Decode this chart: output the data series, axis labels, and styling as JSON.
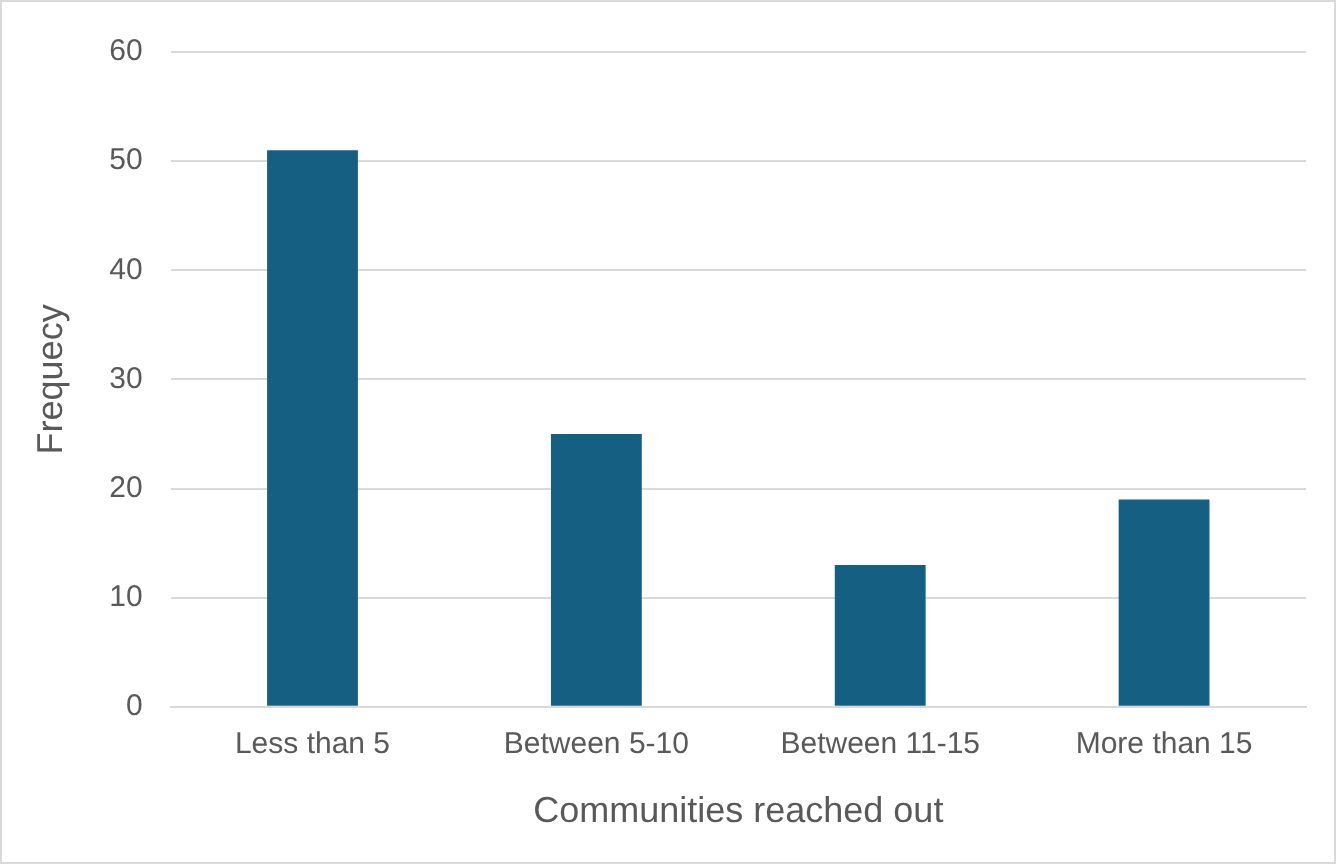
{
  "chart_data": {
    "type": "bar",
    "xlabel": "Communities reached out",
    "ylabel": "Frequecy",
    "categories": [
      "Less than 5",
      "Between 5-10",
      "Between 11-15",
      "More than 15"
    ],
    "values": [
      51,
      25,
      13,
      19
    ],
    "color": "#156082",
    "ylim": [
      0,
      60
    ],
    "yticks": [
      0,
      10,
      20,
      30,
      40,
      50,
      60
    ],
    "grid": "y",
    "legend": false
  }
}
